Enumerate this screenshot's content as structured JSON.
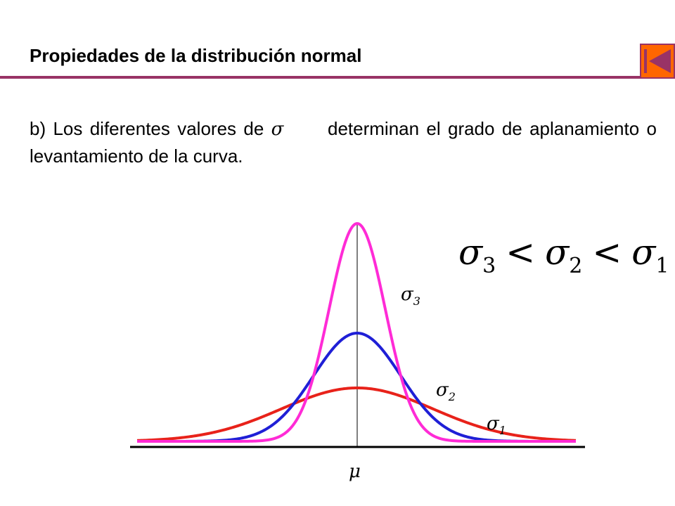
{
  "slide": {
    "title": "Propiedades de la distribución normal",
    "body_before": "b) Los diferentes valores de",
    "body_symbol": "σ",
    "body_after": "determinan el grado de aplanamiento o levantamiento de la curva."
  },
  "nav": {
    "icon": "skip-back-icon",
    "accent_color": "#ff6600",
    "border_color": "#993366"
  },
  "colors": {
    "title_rule": "#993366",
    "sigma1_curve": "#e8221a",
    "sigma2_curve": "#1f1fd6",
    "sigma3_curve": "#ff2bd6",
    "axis": "#000000"
  },
  "diagram": {
    "inequality": {
      "sigma3": "σ",
      "sub3": "3",
      "lt1": "<",
      "sigma2": "σ",
      "sub2": "2",
      "lt2": "<",
      "sigma1": "σ",
      "sub1": "1"
    },
    "labels": {
      "sigma3": {
        "symbol": "σ",
        "sub": "3"
      },
      "sigma2": {
        "symbol": "σ",
        "sub": "2"
      },
      "sigma1": {
        "symbol": "σ",
        "sub": "1"
      },
      "mu": "μ"
    }
  }
}
